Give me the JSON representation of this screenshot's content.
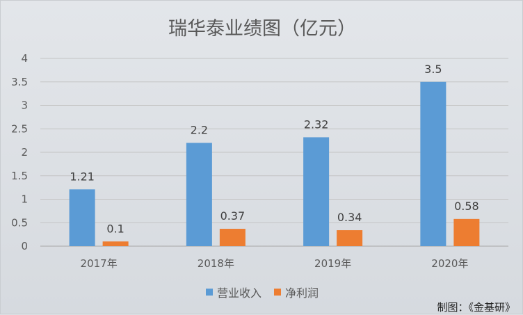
{
  "chart_data": {
    "type": "bar",
    "title": "瑞华泰业绩图（亿元）",
    "categories": [
      "2017年",
      "2018年",
      "2019年",
      "2020年"
    ],
    "series": [
      {
        "name": "营业收入",
        "values": [
          1.21,
          2.2,
          2.32,
          3.5
        ],
        "color": "#5b9bd5"
      },
      {
        "name": "净利润",
        "values": [
          0.1,
          0.37,
          0.34,
          0.58
        ],
        "color": "#ed7d31"
      }
    ],
    "ylim": [
      0,
      4
    ],
    "yticks": [
      "0",
      "0.5",
      "1",
      "1.5",
      "2",
      "2.5",
      "3",
      "3.5",
      "4"
    ],
    "grid": true,
    "legend": "bottom"
  },
  "footer": {
    "credit": "制图：《金基研》"
  }
}
